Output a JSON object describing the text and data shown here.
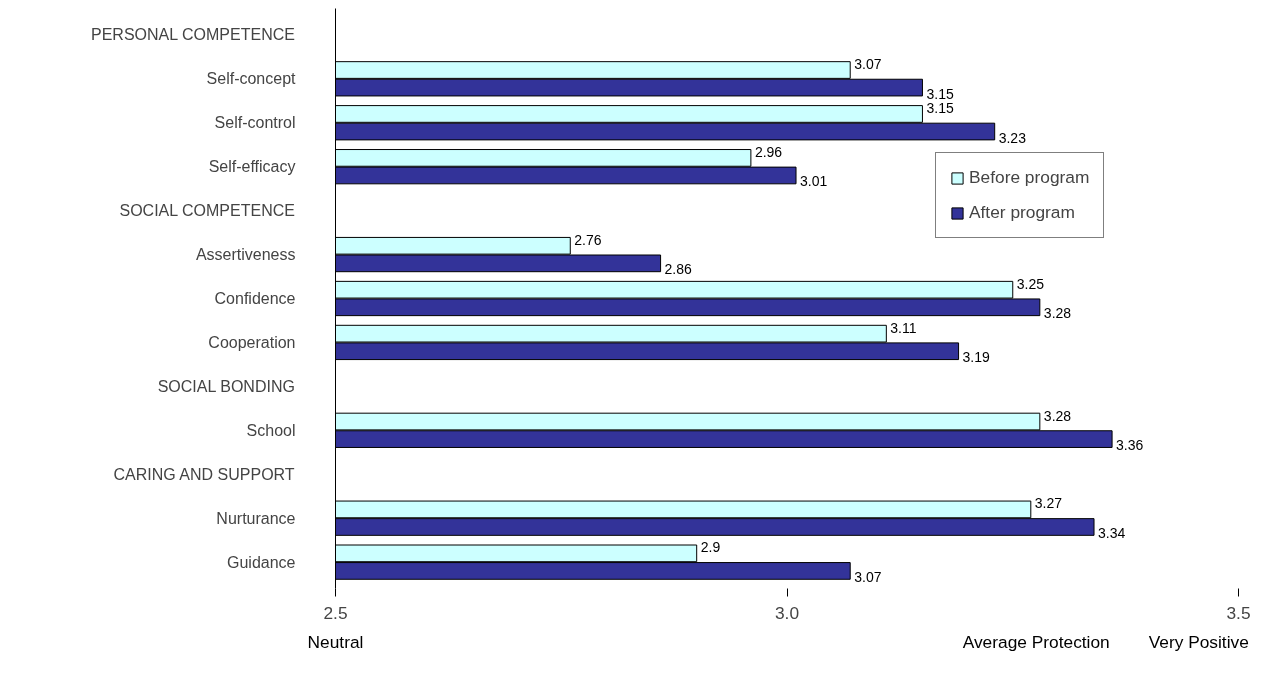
{
  "chart_data": {
    "type": "bar",
    "orientation": "horizontal",
    "categories": [
      "PERSONAL COMPETENCE",
      "Self-concept",
      "Self-control",
      "Self-efficacy",
      "SOCIAL COMPETENCE",
      "Assertiveness",
      "Confidence",
      "Cooperation",
      "SOCIAL BONDING",
      "School",
      "CARING AND SUPPORT",
      "Nurturance",
      "Guidance"
    ],
    "series": [
      {
        "name": "Before program",
        "color": "#ccffff",
        "values": [
          null,
          3.07,
          3.15,
          2.96,
          null,
          2.76,
          3.25,
          3.11,
          null,
          3.28,
          null,
          3.27,
          2.9
        ]
      },
      {
        "name": "After program",
        "color": "#333399",
        "values": [
          null,
          3.15,
          3.23,
          3.01,
          null,
          2.86,
          3.28,
          3.19,
          null,
          3.36,
          null,
          3.34,
          3.07
        ]
      }
    ],
    "xlim": [
      2.5,
      3.5
    ],
    "xticks": [
      2.5,
      {
        "value": 3.0,
        "label": "3.0"
      },
      3.5
    ],
    "data_labels": true,
    "legend": "right",
    "grid": false,
    "annotations": [
      "Neutral",
      "Average Protection",
      "Very Positive"
    ]
  }
}
